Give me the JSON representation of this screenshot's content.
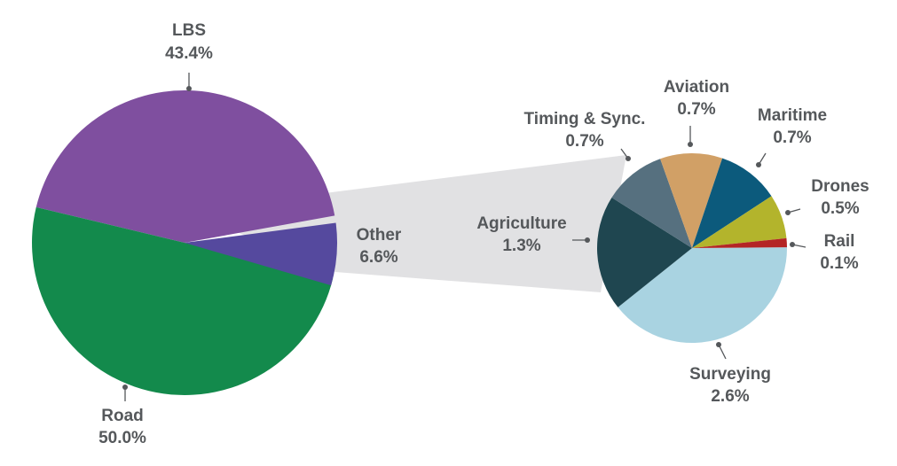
{
  "chart_data": [
    {
      "type": "pie",
      "title": "",
      "slices": [
        {
          "name": "LBS",
          "value": 43.4,
          "label": "43.4%",
          "color": "#7f4f9f"
        },
        {
          "name": "Road",
          "value": 50.0,
          "label": "50.0%",
          "color": "#138a4c"
        },
        {
          "name": "Other",
          "value": 6.6,
          "label": "6.6%",
          "color": "#55499e"
        }
      ]
    },
    {
      "type": "pie",
      "title": "",
      "note": "breakdown of Other",
      "slices": [
        {
          "name": "Surveying",
          "value": 2.6,
          "label": "2.6%",
          "color": "#a9d3e1"
        },
        {
          "name": "Agriculture",
          "value": 1.3,
          "label": "1.3%",
          "color": "#1f4650"
        },
        {
          "name": "Timing & Sync.",
          "value": 0.7,
          "label": "0.7%",
          "color": "#56707f"
        },
        {
          "name": "Aviation",
          "value": 0.7,
          "label": "0.7%",
          "color": "#d1a066"
        },
        {
          "name": "Maritime",
          "value": 0.7,
          "label": "0.7%",
          "color": "#0c5a7c"
        },
        {
          "name": "Drones",
          "value": 0.5,
          "label": "0.5%",
          "color": "#b3b42c"
        },
        {
          "name": "Rail",
          "value": 0.1,
          "label": "0.1%",
          "color": "#b42525"
        }
      ]
    }
  ],
  "colors": {
    "connector": "#e1e1e3",
    "text": "#55585b",
    "background": "#ffffff"
  }
}
